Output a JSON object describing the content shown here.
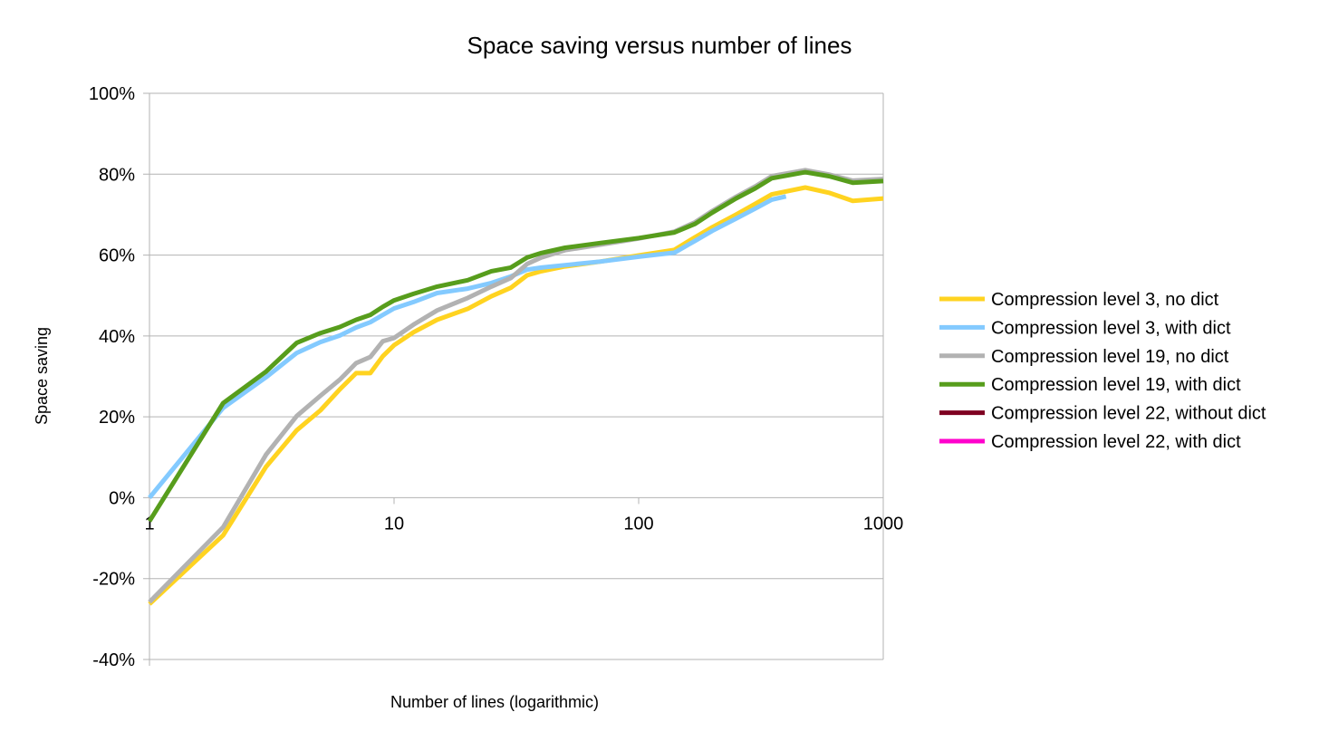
{
  "chart_data": {
    "type": "line",
    "title": "Space saving versus number of lines",
    "xlabel": "Number of lines (logarithmic)",
    "ylabel": "Space saving",
    "xscale": "log",
    "xlim": [
      1,
      1000
    ],
    "ylim": [
      -0.4,
      1.0
    ],
    "x_ticks": [
      1,
      10,
      100,
      1000
    ],
    "x_tick_labels": [
      "1",
      "10",
      "100",
      "1000"
    ],
    "y_ticks": [
      -0.4,
      -0.2,
      0,
      0.2,
      0.4,
      0.6,
      0.8,
      1.0
    ],
    "y_tick_labels": [
      "-40%",
      "-20%",
      "0%",
      "20%",
      "40%",
      "60%",
      "80%",
      "100%"
    ],
    "grid": "horizontal",
    "legend_position": "right",
    "series": [
      {
        "name": "Compression level 3, no dict",
        "color": "#ffd320",
        "points": [
          [
            1,
            -0.263
          ],
          [
            2,
            -0.093
          ],
          [
            3,
            0.077
          ],
          [
            4,
            0.167
          ],
          [
            5,
            0.216
          ],
          [
            6,
            0.268
          ],
          [
            7,
            0.308
          ],
          [
            8,
            0.308
          ],
          [
            9,
            0.35
          ],
          [
            10,
            0.377
          ],
          [
            12,
            0.409
          ],
          [
            15,
            0.44
          ],
          [
            20,
            0.467
          ],
          [
            25,
            0.498
          ],
          [
            30,
            0.519
          ],
          [
            35,
            0.55
          ],
          [
            40,
            0.56
          ],
          [
            50,
            0.572
          ],
          [
            70,
            0.584
          ],
          [
            100,
            0.599
          ],
          [
            140,
            0.613
          ],
          [
            170,
            0.644
          ],
          [
            200,
            0.669
          ],
          [
            250,
            0.7
          ],
          [
            300,
            0.727
          ],
          [
            350,
            0.75
          ],
          [
            480,
            0.767
          ],
          [
            600,
            0.754
          ],
          [
            750,
            0.734
          ],
          [
            1000,
            0.74
          ]
        ]
      },
      {
        "name": "Compression level 3, with dict",
        "color": "#83caff",
        "points": [
          [
            1,
            0.0
          ],
          [
            2,
            0.222
          ],
          [
            3,
            0.298
          ],
          [
            4,
            0.358
          ],
          [
            5,
            0.385
          ],
          [
            6,
            0.401
          ],
          [
            7,
            0.421
          ],
          [
            8,
            0.434
          ],
          [
            9,
            0.452
          ],
          [
            10,
            0.468
          ],
          [
            12,
            0.484
          ],
          [
            15,
            0.506
          ],
          [
            20,
            0.517
          ],
          [
            25,
            0.531
          ],
          [
            30,
            0.547
          ],
          [
            35,
            0.564
          ],
          [
            40,
            0.569
          ],
          [
            50,
            0.575
          ],
          [
            70,
            0.584
          ],
          [
            100,
            0.596
          ],
          [
            140,
            0.606
          ],
          [
            170,
            0.635
          ],
          [
            200,
            0.66
          ],
          [
            250,
            0.69
          ],
          [
            300,
            0.715
          ],
          [
            350,
            0.737
          ],
          [
            400,
            0.745
          ]
        ]
      },
      {
        "name": "Compression level 19, no dict",
        "color": "#b2b2b2",
        "points": [
          [
            1,
            -0.258
          ],
          [
            2,
            -0.073
          ],
          [
            3,
            0.107
          ],
          [
            4,
            0.202
          ],
          [
            5,
            0.252
          ],
          [
            6,
            0.292
          ],
          [
            7,
            0.333
          ],
          [
            8,
            0.348
          ],
          [
            9,
            0.387
          ],
          [
            10,
            0.395
          ],
          [
            12,
            0.428
          ],
          [
            15,
            0.463
          ],
          [
            20,
            0.494
          ],
          [
            25,
            0.522
          ],
          [
            30,
            0.543
          ],
          [
            35,
            0.578
          ],
          [
            40,
            0.594
          ],
          [
            50,
            0.612
          ],
          [
            70,
            0.626
          ],
          [
            100,
            0.641
          ],
          [
            140,
            0.658
          ],
          [
            170,
            0.681
          ],
          [
            200,
            0.709
          ],
          [
            250,
            0.744
          ],
          [
            300,
            0.77
          ],
          [
            350,
            0.795
          ],
          [
            480,
            0.81
          ],
          [
            600,
            0.799
          ],
          [
            750,
            0.784
          ],
          [
            1000,
            0.788
          ]
        ]
      },
      {
        "name": "Compression level 19,  with dict",
        "color": "#579d1c",
        "points": [
          [
            1,
            -0.058
          ],
          [
            2,
            0.234
          ],
          [
            3,
            0.312
          ],
          [
            4,
            0.383
          ],
          [
            5,
            0.407
          ],
          [
            6,
            0.422
          ],
          [
            7,
            0.44
          ],
          [
            8,
            0.452
          ],
          [
            9,
            0.472
          ],
          [
            10,
            0.488
          ],
          [
            12,
            0.504
          ],
          [
            15,
            0.522
          ],
          [
            20,
            0.538
          ],
          [
            25,
            0.56
          ],
          [
            30,
            0.569
          ],
          [
            35,
            0.594
          ],
          [
            40,
            0.605
          ],
          [
            50,
            0.618
          ],
          [
            70,
            0.63
          ],
          [
            100,
            0.642
          ],
          [
            140,
            0.656
          ],
          [
            170,
            0.677
          ],
          [
            200,
            0.705
          ],
          [
            250,
            0.74
          ],
          [
            300,
            0.765
          ],
          [
            350,
            0.79
          ],
          [
            480,
            0.805
          ],
          [
            600,
            0.795
          ],
          [
            750,
            0.779
          ],
          [
            1000,
            0.783
          ]
        ]
      },
      {
        "name": "Compression level 22, without dict",
        "color": "#7e0021",
        "points": []
      },
      {
        "name": "Compression level 22, with dict",
        "color": "#ff00cc",
        "points": []
      }
    ]
  }
}
